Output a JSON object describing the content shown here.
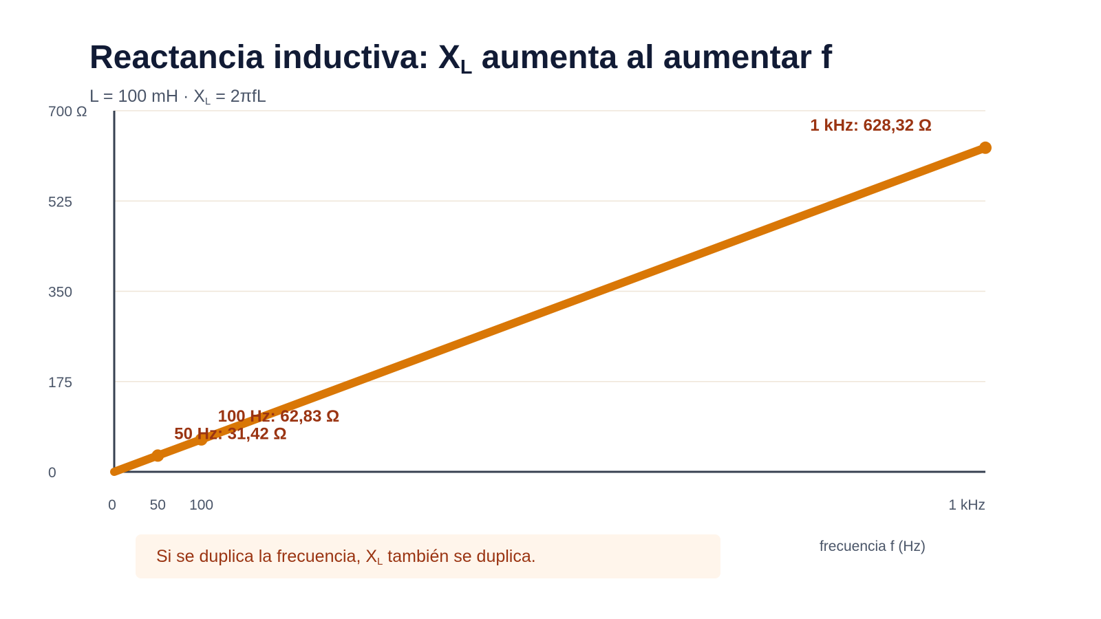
{
  "title": {
    "prefix": "Reactancia inductiva: X",
    "sub": "L",
    "suffix": " aumenta al aumentar f"
  },
  "subtitle": {
    "prefix": "L = 100 mH · X",
    "sub": "L",
    "suffix": " = 2πfL"
  },
  "note": {
    "prefix": "Si se duplica la frecuencia, X",
    "sub": "L",
    "suffix": " también se duplica."
  },
  "colors": {
    "line": "#d97706",
    "label": "#9a3412",
    "axis": "#374151",
    "grid": "#efe6d8"
  },
  "chart_data": {
    "type": "line",
    "x": [
      0,
      50,
      100,
      1000
    ],
    "values": [
      0,
      31.42,
      62.83,
      628.32
    ],
    "xlim": [
      0,
      1000
    ],
    "ylim": [
      0,
      700
    ],
    "xlabel": "frecuencia f (Hz)",
    "ylabel": "",
    "grid": true,
    "x_ticks": [
      {
        "value": 0,
        "label": "0"
      },
      {
        "value": 50,
        "label": "50"
      },
      {
        "value": 100,
        "label": "100"
      },
      {
        "value": 1000,
        "label": "1 kHz"
      }
    ],
    "y_ticks": [
      {
        "value": 0,
        "label": "0"
      },
      {
        "value": 175,
        "label": "175"
      },
      {
        "value": 350,
        "label": "350"
      },
      {
        "value": 525,
        "label": "525"
      },
      {
        "value": 700,
        "label": "700 Ω"
      }
    ],
    "markers": [
      {
        "x": 50,
        "y": 31.42,
        "label": "50 Hz: 31,42 Ω"
      },
      {
        "x": 100,
        "y": 62.83,
        "label": "100 Hz: 62,83 Ω"
      },
      {
        "x": 1000,
        "y": 628.32,
        "label": "1 kHz: 628,32 Ω"
      }
    ]
  }
}
